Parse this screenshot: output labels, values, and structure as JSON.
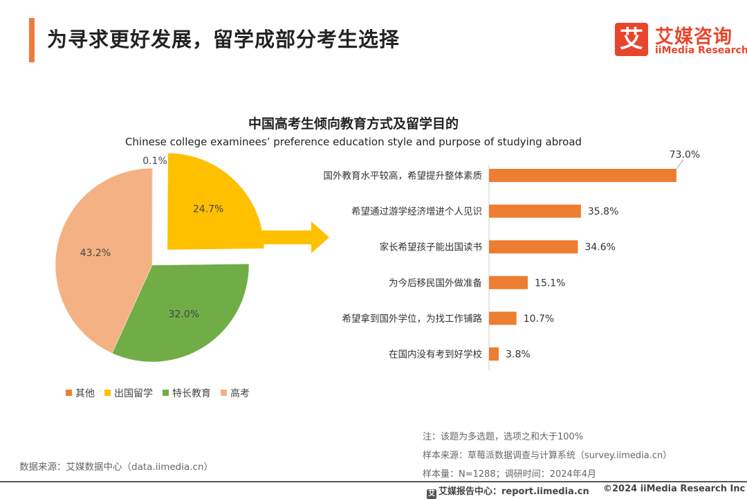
{
  "header": {
    "title": "为寻求更好发展，留学成部分考生选择",
    "logo_cn": "艾媒咨询",
    "logo_en": "iiMedia Research",
    "logo_mark": "艾"
  },
  "colors": {
    "accent": "#f07b3f",
    "bar": "#ed7d31",
    "arrow": "#ffc000",
    "pie_other": "#ed7d31",
    "pie_study_abroad": "#ffc000",
    "pie_special_education": "#70ad47",
    "pie_gaokao": "#f4b183"
  },
  "chart_data": [
    {
      "type": "pie",
      "title": "中国高考生倾向教育方式及留学目的",
      "subtitle": "Chinese college examinees’ preference education style and purpose of studying abroad",
      "slices": [
        {
          "label": "其他",
          "value": 0.1,
          "value_label": "0.1%",
          "color": "#ed7d31"
        },
        {
          "label": "出国留学",
          "value": 24.7,
          "value_label": "24.7%",
          "color": "#ffc000",
          "exploded": true
        },
        {
          "label": "特长教育",
          "value": 32.0,
          "value_label": "32.0%",
          "color": "#70ad47"
        },
        {
          "label": "高考",
          "value": 43.2,
          "value_label": "43.2%",
          "color": "#f4b183"
        }
      ],
      "legend_position": "bottom"
    },
    {
      "type": "bar",
      "orientation": "horizontal",
      "categories": [
        "国外教育水平较高，希望提升整体素质",
        "希望通过游学经济增进个人见识",
        "家长希望孩子能出国读书",
        "为今后移民国外做准备",
        "希望拿到国外学位，为找工作铺路",
        "在国内没有考到好学校"
      ],
      "values": [
        73.0,
        35.8,
        34.6,
        15.1,
        10.7,
        3.8
      ],
      "value_labels": [
        "73.0%",
        "35.8%",
        "34.6%",
        "15.1%",
        "10.7%",
        "3.8%"
      ],
      "xlim": [
        0,
        80
      ],
      "grid": false
    }
  ],
  "notes": {
    "note1": "注：该题为多选题，选项之和大于100%",
    "note2": "样本来源：草莓派数据调查与计算系统（survey.iimedia.cn）",
    "note3": "样本量：N=1288；调研时间：2024年4月"
  },
  "source": "数据来源：艾媒数据中心（data.iimedia.cn）",
  "footer": {
    "report_mark": "艾",
    "report_text": "艾媒报告中心：report.iimedia.cn",
    "copyright": "©2024  iiMedia Research  Inc"
  }
}
